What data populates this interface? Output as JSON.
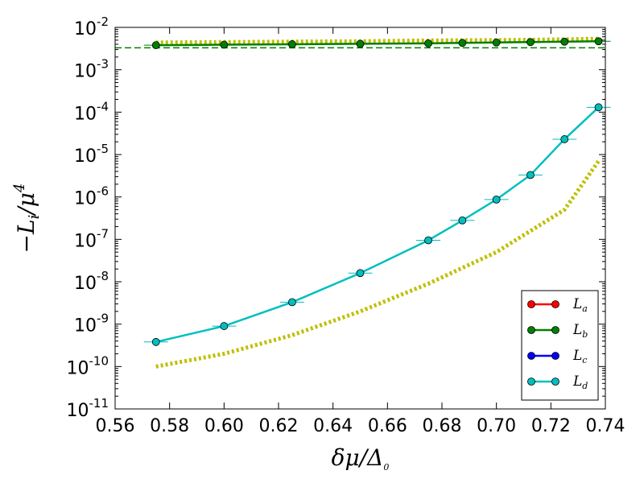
{
  "chart_data": {
    "type": "line",
    "title": "",
    "xlabel": {
      "main": "δμ/Δ",
      "sub": "0"
    },
    "ylabel": {
      "main": "−L",
      "sub": "i",
      "tail": "/μ",
      "sup": "4"
    },
    "xlim": [
      0.56,
      0.74
    ],
    "ylim_log10": [
      -11,
      -2
    ],
    "y_scale": "log",
    "grid": false,
    "legend_placement": "lower-right",
    "x_ticks": [
      "0.56",
      "0.58",
      "0.60",
      "0.62",
      "0.64",
      "0.66",
      "0.68",
      "0.70",
      "0.72",
      "0.74"
    ],
    "y_ticks": [
      {
        "base": "10",
        "exp": "-2"
      },
      {
        "base": "10",
        "exp": "-3"
      },
      {
        "base": "10",
        "exp": "-4"
      },
      {
        "base": "10",
        "exp": "-5"
      },
      {
        "base": "10",
        "exp": "-6"
      },
      {
        "base": "10",
        "exp": "-7"
      },
      {
        "base": "10",
        "exp": "-8"
      },
      {
        "base": "10",
        "exp": "-9"
      },
      {
        "base": "10",
        "exp": "-10"
      },
      {
        "base": "10",
        "exp": "-11"
      }
    ],
    "series": [
      {
        "name": "L",
        "sub": "a",
        "color": "#ff0000",
        "marker": "circle",
        "style": "solid",
        "x": [],
        "y": []
      },
      {
        "name": "L",
        "sub": "b",
        "color": "#008000",
        "marker": "circle",
        "style": "solid",
        "x": [
          0.575,
          0.6,
          0.625,
          0.65,
          0.675,
          0.6875,
          0.7,
          0.7125,
          0.725,
          0.7375
        ],
        "y": [
          0.0038,
          0.0039,
          0.004,
          0.0041,
          0.0042,
          0.0043,
          0.0044,
          0.0045,
          0.0046,
          0.0047
        ]
      },
      {
        "name": "L",
        "sub": "c",
        "color": "#0000ff",
        "marker": "circle",
        "style": "solid",
        "x": [],
        "y": []
      },
      {
        "name": "L",
        "sub": "d",
        "color": "#00bfbf",
        "marker": "circle",
        "style": "solid",
        "x": [
          0.575,
          0.6,
          0.625,
          0.65,
          0.675,
          0.6875,
          0.7,
          0.7125,
          0.725,
          0.7375
        ],
        "y": [
          3.8e-10,
          9e-10,
          3.3e-09,
          1.6e-08,
          9.5e-08,
          2.8e-07,
          8.7e-07,
          3.3e-06,
          2.3e-05,
          0.00013
        ]
      }
    ],
    "reference_curves": [
      {
        "color": "#bfbf00",
        "style": "dotted",
        "x": [
          0.575,
          0.6,
          0.625,
          0.65,
          0.675,
          0.7,
          0.725,
          0.7375
        ],
        "y": [
          0.0044,
          0.0045,
          0.0046,
          0.0047,
          0.0049,
          0.005,
          0.0052,
          0.0054
        ]
      },
      {
        "color": "#bfbf00",
        "style": "dotted",
        "x": [
          0.575,
          0.6,
          0.625,
          0.65,
          0.675,
          0.7,
          0.725,
          0.7375
        ],
        "y": [
          1e-10,
          2e-10,
          5.5e-10,
          2e-09,
          9e-09,
          5e-08,
          5e-07,
          7e-06
        ]
      },
      {
        "color": "#008000",
        "style": "dashed",
        "x": [
          0.56,
          0.74
        ],
        "y": [
          0.0033,
          0.0033
        ]
      }
    ]
  }
}
